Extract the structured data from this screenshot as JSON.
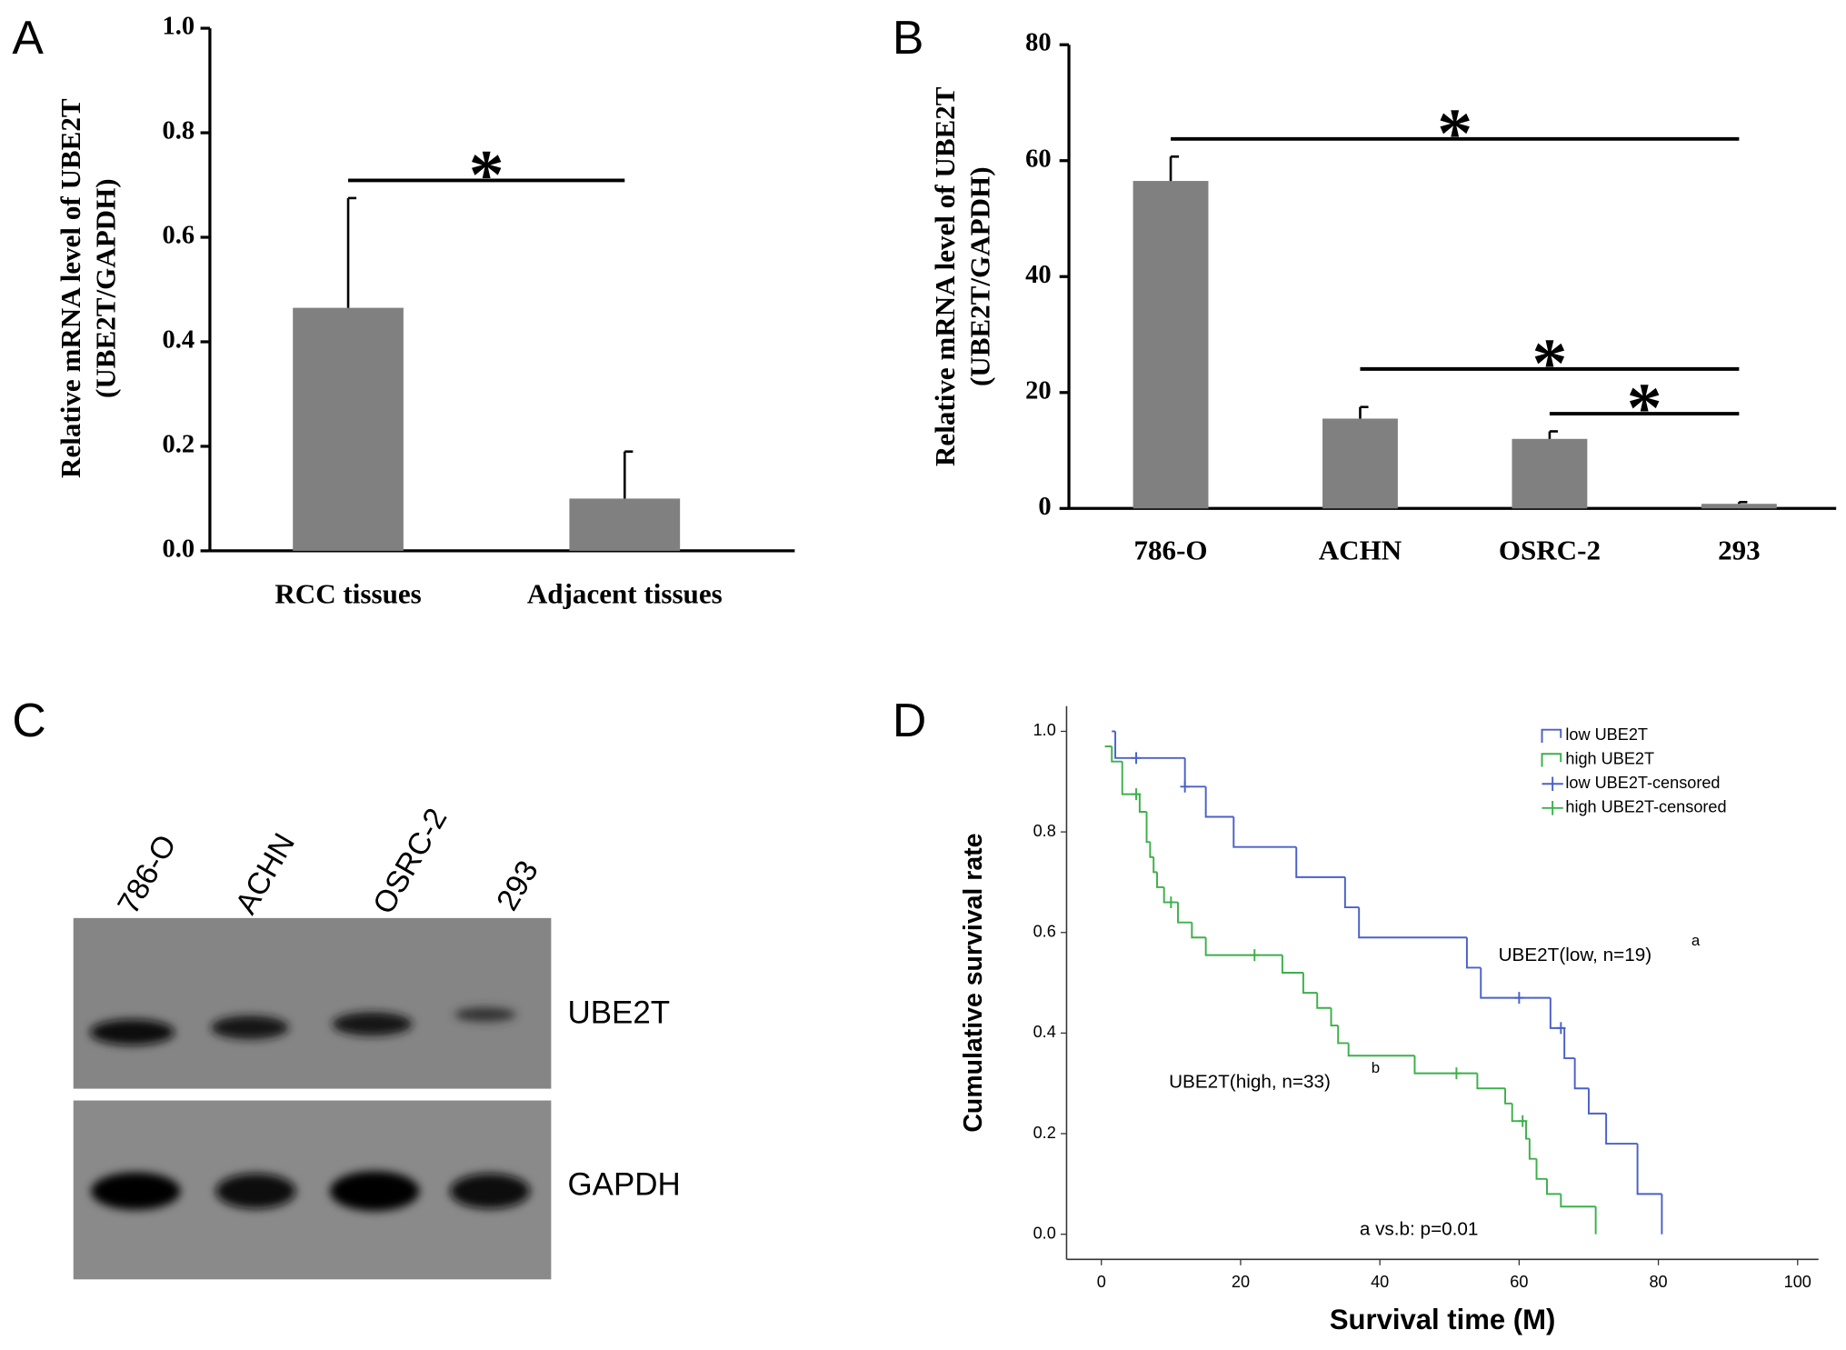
{
  "blot": {
    "label": "C",
    "lanes": [
      "786-O",
      "ACHN",
      "OSRC-2",
      "293"
    ],
    "bands": [
      "UBE2T",
      "GAPDH"
    ]
  },
  "chart_data": [
    {
      "panel": "A",
      "type": "bar",
      "ylabel": [
        "Relative mRNA level of UBE2T",
        "(UBE2T/GAPDH)"
      ],
      "categories": [
        "RCC tissues",
        "Adjacent tissues"
      ],
      "values": [
        0.465,
        0.1
      ],
      "errors": [
        0.21,
        0.09
      ],
      "color": "#808080",
      "ylim": [
        0,
        1
      ],
      "yticks": [
        {
          "value": 0,
          "label": "0.0"
        },
        {
          "value": 0.2,
          "label": "0.2"
        },
        {
          "value": 0.4,
          "label": "0.4"
        },
        {
          "value": 0.6,
          "label": "0.6"
        },
        {
          "value": 0.8,
          "label": "0.8"
        },
        {
          "value": 1,
          "label": "1.0"
        }
      ],
      "significance": [
        {
          "between": [
            "RCC tissues",
            "Adjacent tissues"
          ],
          "label": "*"
        }
      ]
    },
    {
      "panel": "B",
      "type": "bar",
      "ylabel": [
        "Relative mRNA level of UBE2T",
        "(UBE2T/GAPDH)"
      ],
      "categories": [
        "786-O",
        "ACHN",
        "OSRC-2",
        "293"
      ],
      "values": [
        56.5,
        15.5,
        12,
        0.8
      ],
      "errors": [
        4.2,
        2,
        1.3,
        0.3
      ],
      "color": "#808080",
      "ylim": [
        0,
        80
      ],
      "yticks": [
        0,
        20,
        40,
        60,
        80
      ],
      "significance": [
        {
          "between": [
            "786-O",
            "293"
          ],
          "label": "*"
        },
        {
          "between": [
            "ACHN",
            "293"
          ],
          "label": "*"
        },
        {
          "between": [
            "OSRC-2",
            "293"
          ],
          "label": "*"
        }
      ]
    },
    {
      "panel": "D",
      "type": "line",
      "step": true,
      "xlabel": "Survival time (M)",
      "ylabel": "Cumulative survival rate",
      "xlim": [
        -5,
        103
      ],
      "xticks": [
        0,
        20,
        40,
        60,
        80,
        100
      ],
      "ylim": [
        -0.05,
        1.05
      ],
      "yticks": [
        {
          "value": 0,
          "label": "0.0"
        },
        {
          "value": 0.2,
          "label": "0.2"
        },
        {
          "value": 0.4,
          "label": "0.4"
        },
        {
          "value": 0.6,
          "label": "0.6"
        },
        {
          "value": 0.8,
          "label": "0.8"
        },
        {
          "value": 1,
          "label": "1.0"
        }
      ],
      "series": [
        {
          "name": "low UBE2T",
          "color": "#4a60c8",
          "kind": "step",
          "x": [
            1.5,
            2,
            12,
            15,
            19,
            28,
            35,
            37,
            52.5,
            54.5,
            64.5,
            66.5,
            68,
            70,
            72.5,
            77,
            80.5
          ],
          "values": [
            1.0,
            0.947,
            0.89,
            0.83,
            0.77,
            0.71,
            0.65,
            0.59,
            0.53,
            0.47,
            0.41,
            0.35,
            0.29,
            0.24,
            0.18,
            0.08,
            0.0
          ]
        },
        {
          "name": "high UBE2T",
          "color": "#3cb04a",
          "kind": "step",
          "x": [
            0.5,
            1.5,
            3,
            5.5,
            6.5,
            7,
            7.5,
            8,
            9,
            11,
            13,
            15,
            26,
            29,
            31,
            33,
            34,
            35.5,
            45,
            54,
            58,
            59,
            61,
            61.5,
            62.5,
            64,
            66,
            71
          ],
          "values": [
            0.97,
            0.94,
            0.875,
            0.84,
            0.78,
            0.75,
            0.72,
            0.69,
            0.66,
            0.62,
            0.59,
            0.555,
            0.52,
            0.48,
            0.45,
            0.415,
            0.38,
            0.355,
            0.32,
            0.29,
            0.26,
            0.225,
            0.19,
            0.15,
            0.11,
            0.08,
            0.055,
            0.0
          ]
        },
        {
          "name": "low UBE2T-censored",
          "color": "#4a60c8",
          "kind": "censored",
          "x": [
            5,
            12,
            60,
            66
          ],
          "values": [
            0.947,
            0.89,
            0.47,
            0.41
          ]
        },
        {
          "name": "high UBE2T-censored",
          "color": "#3cb04a",
          "kind": "censored",
          "x": [
            5,
            10,
            22,
            51,
            60.5
          ],
          "values": [
            0.875,
            0.66,
            0.555,
            0.32,
            0.225
          ]
        }
      ],
      "annotations": [
        {
          "text": "UBE2T(low, n=19)",
          "sup": "a"
        },
        {
          "text": "UBE2T(high, n=33)",
          "sup": "b"
        },
        {
          "text": "a vs.b: p=0.01"
        }
      ]
    }
  ]
}
